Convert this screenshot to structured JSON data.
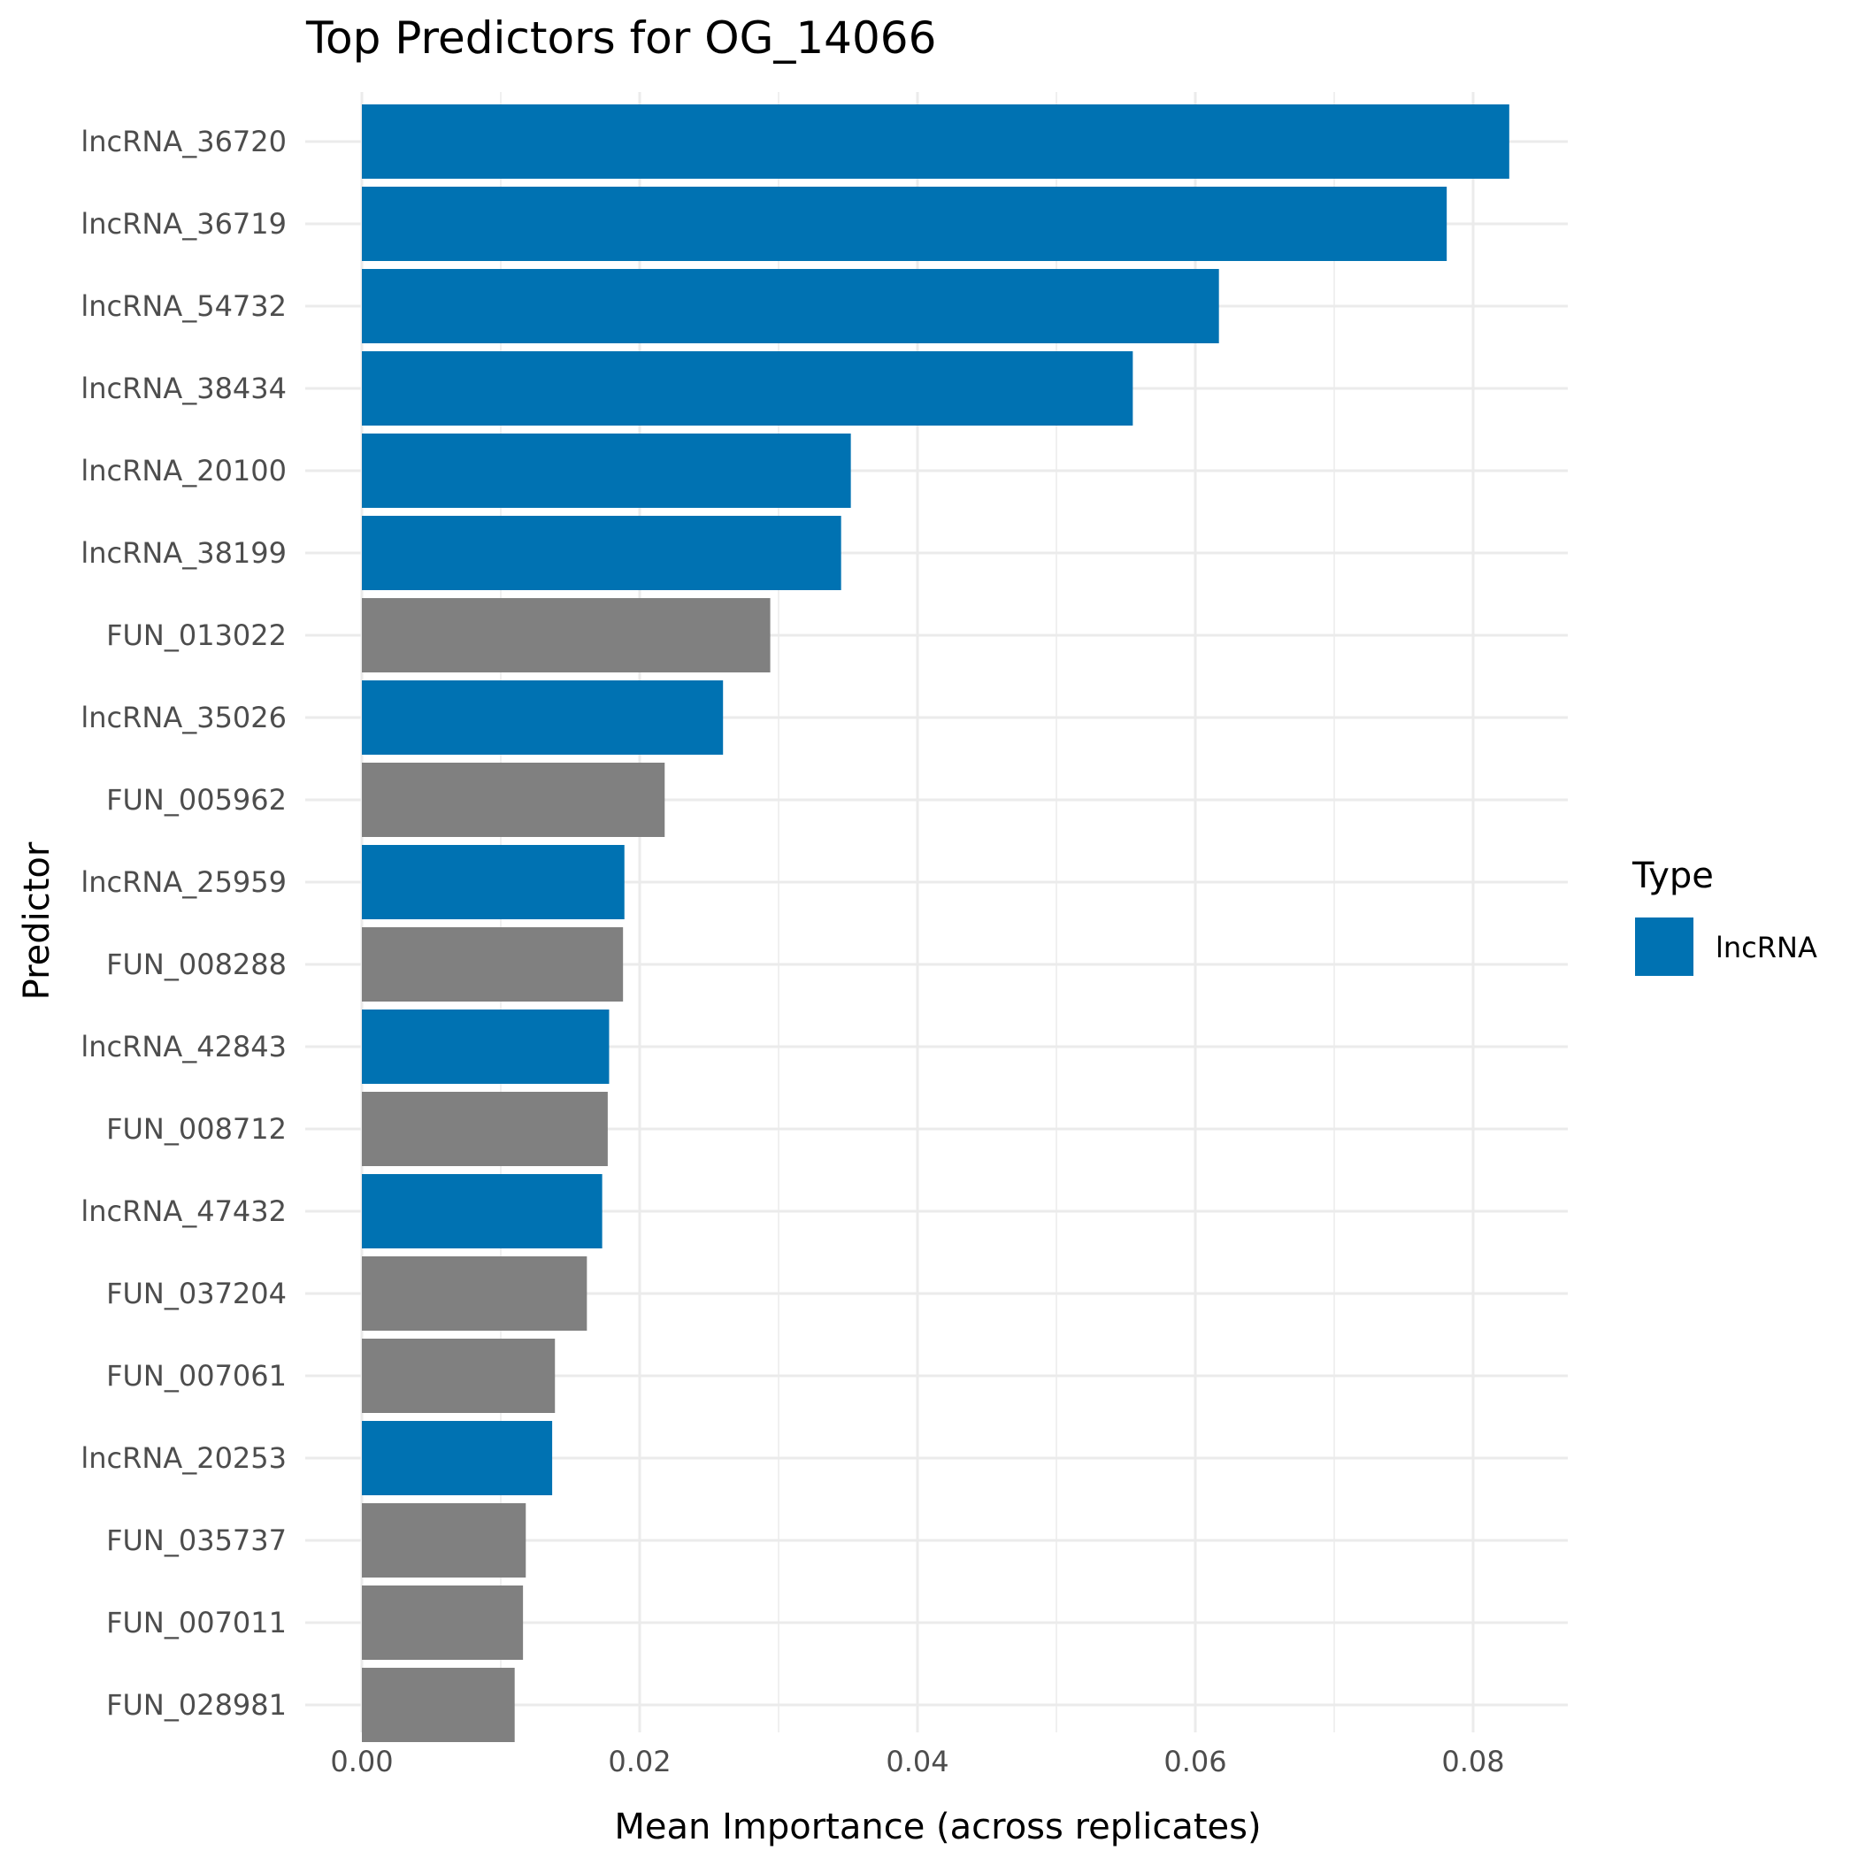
{
  "chart_data": {
    "type": "bar",
    "orientation": "horizontal",
    "title": "Top Predictors for OG_14066",
    "xlabel": "Mean Importance (across replicates)",
    "ylabel": "Predictor",
    "xlim": [
      0,
      0.086
    ],
    "xticks": [
      0.0,
      0.02,
      0.04,
      0.06,
      0.08
    ],
    "xtick_labels": [
      "0.00",
      "0.02",
      "0.04",
      "0.06",
      "0.08"
    ],
    "grid": true,
    "legend": {
      "title": "Type",
      "placement": "right",
      "entries": [
        {
          "label": "lncRNA",
          "color": "#0072B2"
        }
      ]
    },
    "colors": {
      "lncRNA": "#0072B2",
      "other": "#808080"
    },
    "categories": [
      "lncRNA_36720",
      "lncRNA_36719",
      "lncRNA_54732",
      "lncRNA_38434",
      "lncRNA_20100",
      "lncRNA_38199",
      "FUN_013022",
      "lncRNA_35026",
      "FUN_005962",
      "lncRNA_25959",
      "FUN_008288",
      "lncRNA_42843",
      "FUN_008712",
      "lncRNA_47432",
      "FUN_037204",
      "FUN_007061",
      "lncRNA_20253",
      "FUN_035737",
      "FUN_007011",
      "FUN_028981"
    ],
    "values": [
      0.0826,
      0.0781,
      0.0617,
      0.0555,
      0.0352,
      0.0345,
      0.0294,
      0.026,
      0.0218,
      0.0189,
      0.0188,
      0.0178,
      0.0177,
      0.0173,
      0.0162,
      0.0139,
      0.0137,
      0.0118,
      0.0116,
      0.011
    ],
    "types": [
      "lncRNA",
      "lncRNA",
      "lncRNA",
      "lncRNA",
      "lncRNA",
      "lncRNA",
      "other",
      "lncRNA",
      "other",
      "lncRNA",
      "other",
      "lncRNA",
      "other",
      "lncRNA",
      "other",
      "other",
      "lncRNA",
      "other",
      "other",
      "other"
    ]
  }
}
